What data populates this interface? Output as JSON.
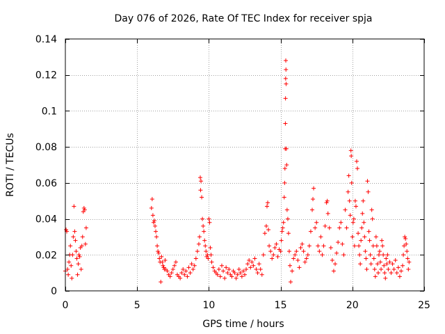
{
  "chart_data": {
    "type": "scatter",
    "title": "Day 076 of 2026, Rate Of TEC Index for receiver spja",
    "xlabel": "GPS time / hours",
    "ylabel": "ROTI / TECUs",
    "xlim": [
      0,
      25
    ],
    "ylim": [
      0,
      0.14
    ],
    "grid": true,
    "marker": "+",
    "x_ticks": [
      0,
      5,
      10,
      15,
      20,
      25
    ],
    "x_tick_labels": [
      "0",
      "5",
      "10",
      "15",
      "20",
      "25"
    ],
    "y_ticks": [
      0,
      0.02,
      0.04,
      0.06,
      0.08,
      0.1,
      0.12,
      0.14
    ],
    "y_tick_labels": [
      "0",
      "0.02",
      "0.04",
      "0.06",
      "0.08",
      "0.1",
      "0.12",
      "0.14"
    ],
    "series": [
      {
        "name": "ROTI",
        "color": "#ff0000",
        "points": [
          [
            0.0,
            0.011
          ],
          [
            0.05,
            0.034
          ],
          [
            0.1,
            0.033
          ],
          [
            0.15,
            0.012
          ],
          [
            0.2,
            0.009
          ],
          [
            0.25,
            0.016
          ],
          [
            0.3,
            0.02
          ],
          [
            0.35,
            0.025
          ],
          [
            0.4,
            0.014
          ],
          [
            0.45,
            0.007
          ],
          [
            0.5,
            0.02
          ],
          [
            0.55,
            0.03
          ],
          [
            0.6,
            0.047
          ],
          [
            0.65,
            0.033
          ],
          [
            0.7,
            0.028
          ],
          [
            0.75,
            0.022
          ],
          [
            0.8,
            0.018
          ],
          [
            0.85,
            0.009
          ],
          [
            0.9,
            0.015
          ],
          [
            0.95,
            0.02
          ],
          [
            1.0,
            0.019
          ],
          [
            1.05,
            0.024
          ],
          [
            1.1,
            0.012
          ],
          [
            1.15,
            0.025
          ],
          [
            1.2,
            0.03
          ],
          [
            1.25,
            0.044
          ],
          [
            1.3,
            0.046
          ],
          [
            1.35,
            0.045
          ],
          [
            1.4,
            0.026
          ],
          [
            1.45,
            0.035
          ],
          [
            6.0,
            0.046
          ],
          [
            6.05,
            0.051
          ],
          [
            6.1,
            0.042
          ],
          [
            6.15,
            0.038
          ],
          [
            6.2,
            0.039
          ],
          [
            6.25,
            0.036
          ],
          [
            6.3,
            0.033
          ],
          [
            6.35,
            0.03
          ],
          [
            6.4,
            0.025
          ],
          [
            6.45,
            0.022
          ],
          [
            6.5,
            0.021
          ],
          [
            6.55,
            0.018
          ],
          [
            6.6,
            0.016
          ],
          [
            6.65,
            0.005
          ],
          [
            6.7,
            0.019
          ],
          [
            6.75,
            0.016
          ],
          [
            6.8,
            0.014
          ],
          [
            6.85,
            0.013
          ],
          [
            6.9,
            0.012
          ],
          [
            6.95,
            0.017
          ],
          [
            7.0,
            0.012
          ],
          [
            7.1,
            0.011
          ],
          [
            7.2,
            0.009
          ],
          [
            7.3,
            0.008
          ],
          [
            7.4,
            0.01
          ],
          [
            7.5,
            0.012
          ],
          [
            7.6,
            0.014
          ],
          [
            7.7,
            0.016
          ],
          [
            7.8,
            0.009
          ],
          [
            7.9,
            0.008
          ],
          [
            8.0,
            0.007
          ],
          [
            8.1,
            0.01
          ],
          [
            8.2,
            0.012
          ],
          [
            8.3,
            0.009
          ],
          [
            8.4,
            0.011
          ],
          [
            8.5,
            0.008
          ],
          [
            8.6,
            0.013
          ],
          [
            8.7,
            0.01
          ],
          [
            8.8,
            0.015
          ],
          [
            8.9,
            0.012
          ],
          [
            9.0,
            0.014
          ],
          [
            9.1,
            0.018
          ],
          [
            9.2,
            0.022
          ],
          [
            9.3,
            0.026
          ],
          [
            9.35,
            0.03
          ],
          [
            9.4,
            0.063
          ],
          [
            9.42,
            0.056
          ],
          [
            9.45,
            0.061
          ],
          [
            9.5,
            0.052
          ],
          [
            9.55,
            0.04
          ],
          [
            9.6,
            0.036
          ],
          [
            9.65,
            0.033
          ],
          [
            9.7,
            0.028
          ],
          [
            9.75,
            0.025
          ],
          [
            9.8,
            0.022
          ],
          [
            9.85,
            0.019
          ],
          [
            9.9,
            0.02
          ],
          [
            9.95,
            0.018
          ],
          [
            10.0,
            0.04
          ],
          [
            10.05,
            0.038
          ],
          [
            10.1,
            0.024
          ],
          [
            10.15,
            0.02
          ],
          [
            10.2,
            0.016
          ],
          [
            10.3,
            0.013
          ],
          [
            10.4,
            0.011
          ],
          [
            10.5,
            0.01
          ],
          [
            10.6,
            0.009
          ],
          [
            10.7,
            0.012
          ],
          [
            10.8,
            0.008
          ],
          [
            10.9,
            0.014
          ],
          [
            11.0,
            0.011
          ],
          [
            11.1,
            0.007
          ],
          [
            11.2,
            0.013
          ],
          [
            11.3,
            0.01
          ],
          [
            11.4,
            0.012
          ],
          [
            11.5,
            0.009
          ],
          [
            11.6,
            0.008
          ],
          [
            11.7,
            0.011
          ],
          [
            11.8,
            0.01
          ],
          [
            11.9,
            0.007
          ],
          [
            12.0,
            0.009
          ],
          [
            12.1,
            0.012
          ],
          [
            12.2,
            0.01
          ],
          [
            12.3,
            0.008
          ],
          [
            12.4,
            0.011
          ],
          [
            12.5,
            0.009
          ],
          [
            12.6,
            0.012
          ],
          [
            12.7,
            0.015
          ],
          [
            12.8,
            0.017
          ],
          [
            12.9,
            0.013
          ],
          [
            13.0,
            0.016
          ],
          [
            13.1,
            0.014
          ],
          [
            13.2,
            0.018
          ],
          [
            13.3,
            0.012
          ],
          [
            13.4,
            0.01
          ],
          [
            13.5,
            0.015
          ],
          [
            13.6,
            0.012
          ],
          [
            13.7,
            0.009
          ],
          [
            13.8,
            0.02
          ],
          [
            13.9,
            0.032
          ],
          [
            14.0,
            0.036
          ],
          [
            14.05,
            0.047
          ],
          [
            14.1,
            0.049
          ],
          [
            14.15,
            0.034
          ],
          [
            14.2,
            0.025
          ],
          [
            14.3,
            0.022
          ],
          [
            14.4,
            0.018
          ],
          [
            14.5,
            0.02
          ],
          [
            14.6,
            0.024
          ],
          [
            14.7,
            0.026
          ],
          [
            14.8,
            0.019
          ],
          [
            14.9,
            0.023
          ],
          [
            15.0,
            0.022
          ],
          [
            15.05,
            0.028
          ],
          [
            15.1,
            0.033
          ],
          [
            15.15,
            0.035
          ],
          [
            15.2,
            0.038
          ],
          [
            15.25,
            0.052
          ],
          [
            15.28,
            0.06
          ],
          [
            15.3,
            0.068
          ],
          [
            15.32,
            0.079
          ],
          [
            15.33,
            0.093
          ],
          [
            15.34,
            0.107
          ],
          [
            15.35,
            0.118
          ],
          [
            15.36,
            0.128
          ],
          [
            15.37,
            0.123
          ],
          [
            15.38,
            0.115
          ],
          [
            15.4,
            0.079
          ],
          [
            15.42,
            0.07
          ],
          [
            15.45,
            0.045
          ],
          [
            15.5,
            0.04
          ],
          [
            15.55,
            0.032
          ],
          [
            15.6,
            0.022
          ],
          [
            15.65,
            0.014
          ],
          [
            15.7,
            0.005
          ],
          [
            15.8,
            0.011
          ],
          [
            15.9,
            0.018
          ],
          [
            16.0,
            0.02
          ],
          [
            16.1,
            0.022
          ],
          [
            16.2,
            0.017
          ],
          [
            16.3,
            0.013
          ],
          [
            16.4,
            0.024
          ],
          [
            16.5,
            0.026
          ],
          [
            16.6,
            0.022
          ],
          [
            16.7,
            0.016
          ],
          [
            16.8,
            0.018
          ],
          [
            16.9,
            0.02
          ],
          [
            17.0,
            0.025
          ],
          [
            17.1,
            0.033
          ],
          [
            17.2,
            0.045
          ],
          [
            17.25,
            0.051
          ],
          [
            17.3,
            0.057
          ],
          [
            17.4,
            0.035
          ],
          [
            17.5,
            0.038
          ],
          [
            17.6,
            0.025
          ],
          [
            17.7,
            0.022
          ],
          [
            17.8,
            0.03
          ],
          [
            17.9,
            0.02
          ],
          [
            18.0,
            0.025
          ],
          [
            18.1,
            0.036
          ],
          [
            18.2,
            0.049
          ],
          [
            18.25,
            0.05
          ],
          [
            18.3,
            0.043
          ],
          [
            18.4,
            0.035
          ],
          [
            18.5,
            0.024
          ],
          [
            18.6,
            0.017
          ],
          [
            18.7,
            0.011
          ],
          [
            18.8,
            0.015
          ],
          [
            18.9,
            0.021
          ],
          [
            19.0,
            0.027
          ],
          [
            19.1,
            0.035
          ],
          [
            19.2,
            0.038
          ],
          [
            19.3,
            0.026
          ],
          [
            19.4,
            0.02
          ],
          [
            19.5,
            0.045
          ],
          [
            19.6,
            0.035
          ],
          [
            19.7,
            0.055
          ],
          [
            19.75,
            0.064
          ],
          [
            19.8,
            0.05
          ],
          [
            19.85,
            0.042
          ],
          [
            19.9,
            0.078
          ],
          [
            19.92,
            0.075
          ],
          [
            19.95,
            0.06
          ],
          [
            20.0,
            0.03
          ],
          [
            20.05,
            0.038
          ],
          [
            20.1,
            0.04
          ],
          [
            20.15,
            0.025
          ],
          [
            20.2,
            0.05
          ],
          [
            20.25,
            0.047
          ],
          [
            20.3,
            0.072
          ],
          [
            20.35,
            0.068
          ],
          [
            20.4,
            0.032
          ],
          [
            20.45,
            0.025
          ],
          [
            20.5,
            0.02
          ],
          [
            20.55,
            0.015
          ],
          [
            20.6,
            0.028
          ],
          [
            20.65,
            0.035
          ],
          [
            20.7,
            0.043
          ],
          [
            20.75,
            0.05
          ],
          [
            20.8,
            0.038
          ],
          [
            20.85,
            0.03
          ],
          [
            20.9,
            0.022
          ],
          [
            20.95,
            0.018
          ],
          [
            21.0,
            0.012
          ],
          [
            21.05,
            0.061
          ],
          [
            21.1,
            0.055
          ],
          [
            21.15,
            0.033
          ],
          [
            21.2,
            0.028
          ],
          [
            21.25,
            0.02
          ],
          [
            21.3,
            0.015
          ],
          [
            21.35,
            0.045
          ],
          [
            21.4,
            0.04
          ],
          [
            21.45,
            0.025
          ],
          [
            21.5,
            0.018
          ],
          [
            21.55,
            0.012
          ],
          [
            21.6,
            0.008
          ],
          [
            21.65,
            0.03
          ],
          [
            21.7,
            0.025
          ],
          [
            21.75,
            0.015
          ],
          [
            21.8,
            0.01
          ],
          [
            21.85,
            0.02
          ],
          [
            21.9,
            0.022
          ],
          [
            21.95,
            0.016
          ],
          [
            22.0,
            0.012
          ],
          [
            22.05,
            0.028
          ],
          [
            22.1,
            0.025
          ],
          [
            22.15,
            0.02
          ],
          [
            22.2,
            0.014
          ],
          [
            22.25,
            0.01
          ],
          [
            22.3,
            0.007
          ],
          [
            22.35,
            0.018
          ],
          [
            22.4,
            0.015
          ],
          [
            22.45,
            0.02
          ],
          [
            22.5,
            0.012
          ],
          [
            22.6,
            0.016
          ],
          [
            22.7,
            0.01
          ],
          [
            22.8,
            0.015
          ],
          [
            22.9,
            0.012
          ],
          [
            23.0,
            0.017
          ],
          [
            23.1,
            0.01
          ],
          [
            23.2,
            0.013
          ],
          [
            23.3,
            0.008
          ],
          [
            23.4,
            0.011
          ],
          [
            23.5,
            0.014
          ],
          [
            23.55,
            0.02
          ],
          [
            23.6,
            0.025
          ],
          [
            23.65,
            0.03
          ],
          [
            23.7,
            0.029
          ],
          [
            23.75,
            0.026
          ],
          [
            23.8,
            0.022
          ],
          [
            23.85,
            0.018
          ],
          [
            23.9,
            0.012
          ],
          [
            23.95,
            0.016
          ]
        ]
      }
    ]
  }
}
